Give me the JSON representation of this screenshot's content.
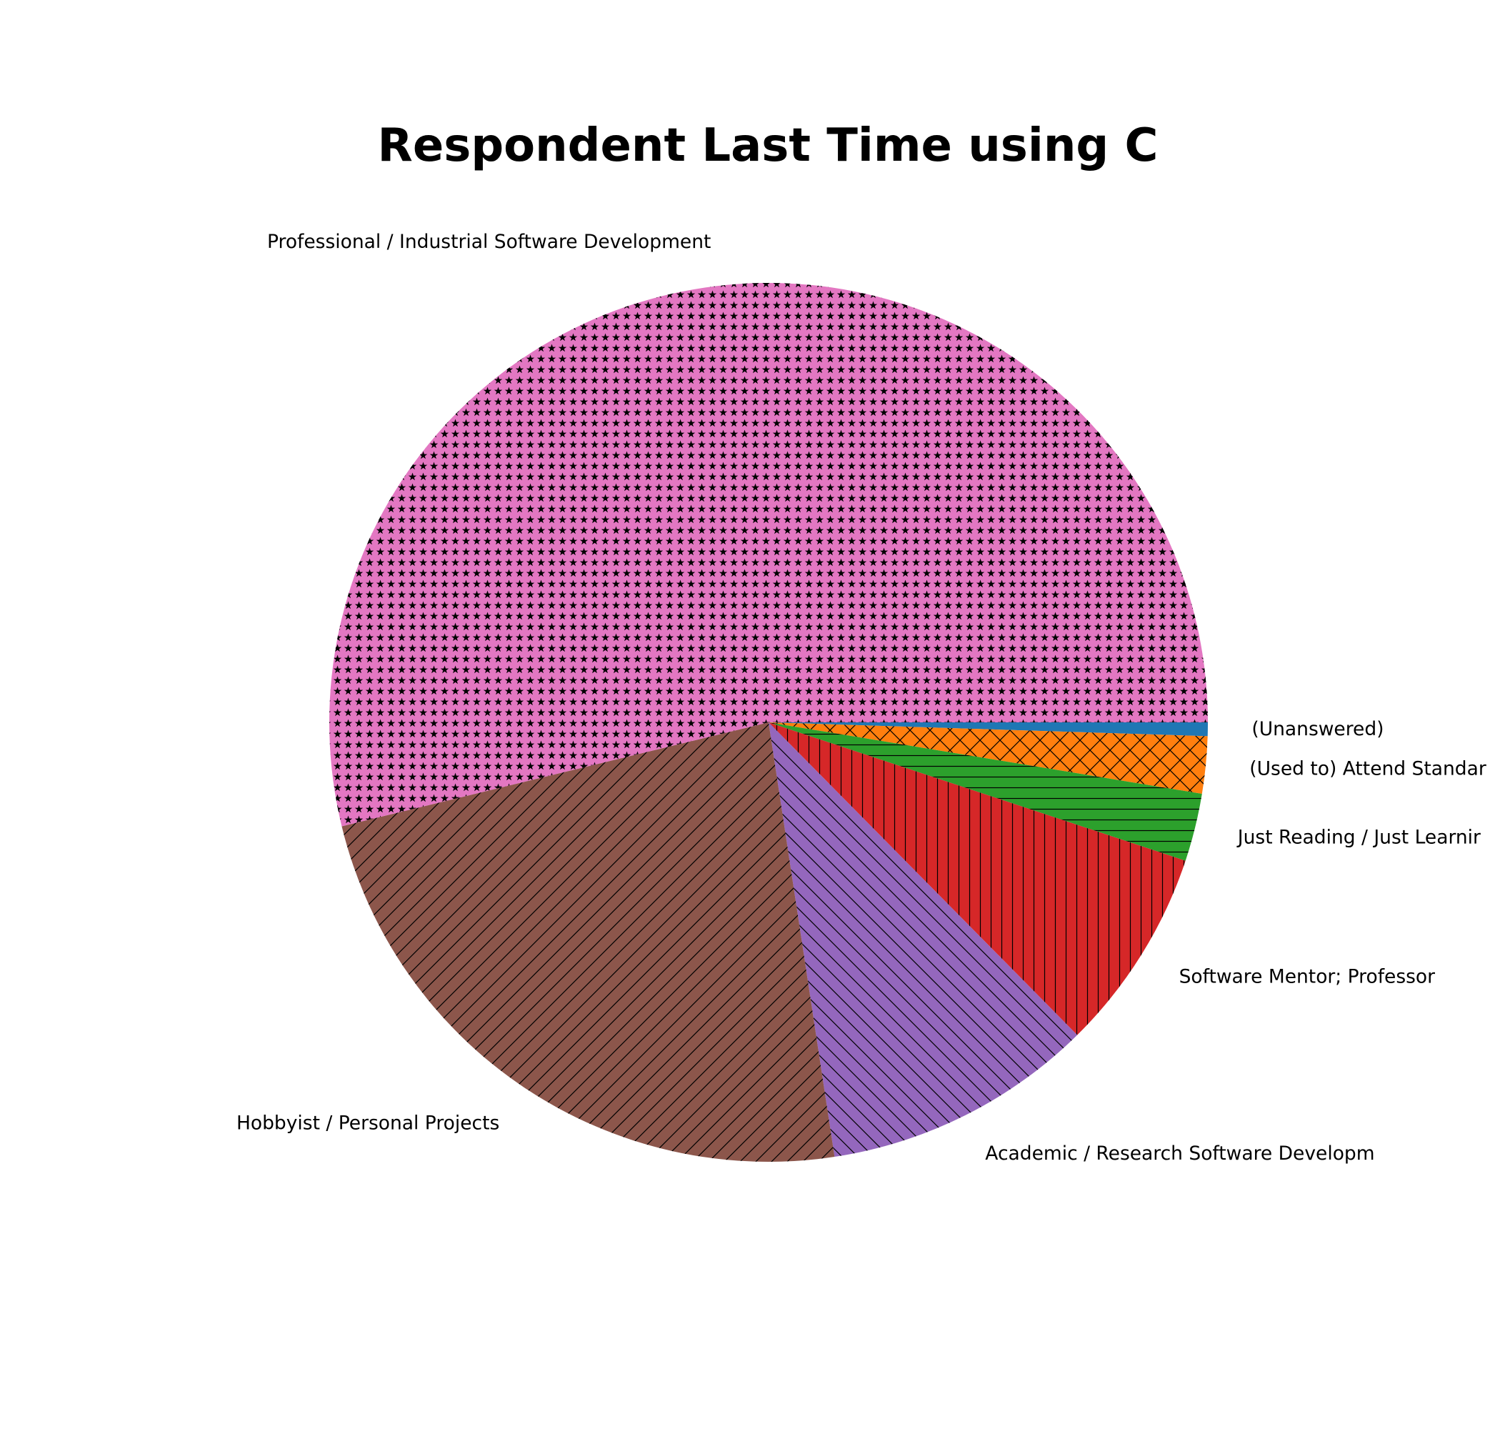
{
  "chart_data": {
    "type": "pie",
    "title": "Respondent Last Time using C",
    "slices": [
      {
        "label": "(Unanswered)",
        "value": 0.5,
        "color": "#1f77b4",
        "hatch": "none"
      },
      {
        "label": "(Used to) Attend Standar",
        "value": 2.1,
        "color": "#ff7f0e",
        "hatch": "cross"
      },
      {
        "label": "Just Reading / Just Learnir",
        "value": 2.5,
        "color": "#2ca02c",
        "hatch": "horizontal"
      },
      {
        "label": "Software Mentor; Professor",
        "value": 7.5,
        "color": "#d62728",
        "hatch": "vertical"
      },
      {
        "label": "Academic / Research Software Developm",
        "value": 10.0,
        "color": "#9467bd",
        "hatch": "backslash"
      },
      {
        "label": "Hobbyist / Personal Projects",
        "value": 23.6,
        "color": "#8c564b",
        "hatch": "slash"
      },
      {
        "label": "Professional / Industrial Software Development",
        "value": 53.8,
        "color": "#e377c2",
        "hatch": "star"
      }
    ],
    "start_angle_deg": 0,
    "direction": "clockwise"
  }
}
